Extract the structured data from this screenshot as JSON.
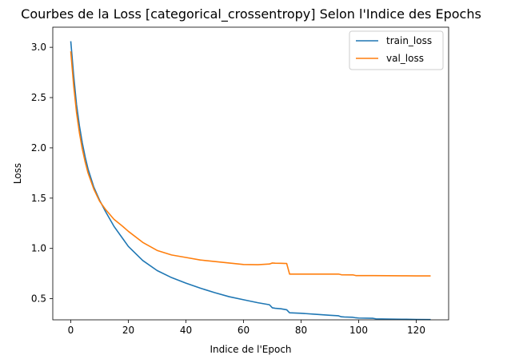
{
  "chart_data": {
    "type": "line",
    "title": "Courbes de la Loss [categorical_crossentropy] Selon l'Indice des Epochs",
    "xlabel": "Indice de l'Epoch",
    "ylabel": "Loss",
    "xlim": [
      -6.25,
      131.25
    ],
    "ylim": [
      0.29,
      3.2
    ],
    "xticks": [
      0,
      20,
      40,
      60,
      80,
      100,
      120
    ],
    "yticks": [
      0.5,
      1.0,
      1.5,
      2.0,
      2.5,
      3.0
    ],
    "xtick_labels": [
      "0",
      "20",
      "40",
      "60",
      "80",
      "100",
      "120"
    ],
    "ytick_labels": [
      "0.5",
      "1.0",
      "1.5",
      "2.0",
      "2.5",
      "3.0"
    ],
    "legend_position": "top-right",
    "grid": false,
    "series": [
      {
        "name": "train_loss",
        "color": "#1f77b4",
        "x": [
          0,
          1,
          2,
          3,
          4,
          5,
          6,
          8,
          10,
          12,
          15,
          18,
          20,
          25,
          30,
          35,
          40,
          45,
          50,
          55,
          60,
          65,
          69,
          70,
          71,
          73,
          75,
          76,
          80,
          85,
          90,
          93,
          94,
          95,
          98,
          99,
          100,
          105,
          106,
          110,
          115,
          120,
          125
        ],
        "y": [
          3.06,
          2.72,
          2.43,
          2.22,
          2.05,
          1.91,
          1.79,
          1.61,
          1.48,
          1.37,
          1.22,
          1.1,
          1.02,
          0.88,
          0.78,
          0.71,
          0.655,
          0.605,
          0.56,
          0.52,
          0.49,
          0.46,
          0.44,
          0.41,
          0.405,
          0.4,
          0.39,
          0.36,
          0.355,
          0.345,
          0.335,
          0.33,
          0.32,
          0.318,
          0.315,
          0.31,
          0.308,
          0.305,
          0.3,
          0.298,
          0.296,
          0.294,
          0.293
        ]
      },
      {
        "name": "val_loss",
        "color": "#ff7f0e",
        "x": [
          0,
          1,
          2,
          3,
          4,
          5,
          6,
          8,
          10,
          12,
          15,
          18,
          20,
          25,
          30,
          35,
          40,
          45,
          50,
          55,
          60,
          65,
          69,
          70,
          71,
          73,
          75,
          76,
          80,
          85,
          90,
          93,
          94,
          98,
          99,
          100,
          105,
          110,
          115,
          120,
          125
        ],
        "y": [
          2.96,
          2.62,
          2.35,
          2.15,
          1.99,
          1.86,
          1.75,
          1.59,
          1.47,
          1.39,
          1.29,
          1.22,
          1.17,
          1.06,
          0.98,
          0.935,
          0.91,
          0.885,
          0.87,
          0.855,
          0.84,
          0.838,
          0.845,
          0.855,
          0.853,
          0.852,
          0.85,
          0.745,
          0.745,
          0.745,
          0.745,
          0.745,
          0.738,
          0.737,
          0.73,
          0.73,
          0.73,
          0.729,
          0.728,
          0.727,
          0.727
        ]
      }
    ]
  }
}
